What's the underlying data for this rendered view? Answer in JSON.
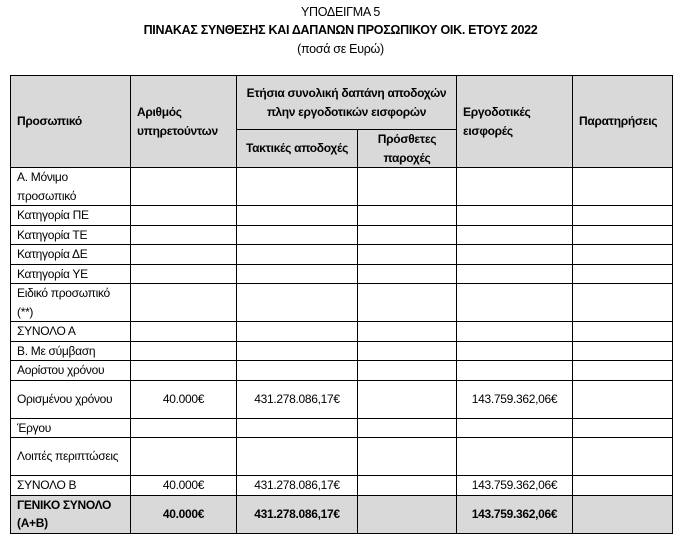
{
  "heading": {
    "subtitle": "ΥΠΟΔΕΙΓΜΑ 5",
    "title": "ΠΙΝΑΚΑΣ ΣΥΝΘΕΣΗΣ ΚΑΙ ΔΑΠΑΝΩΝ ΠΡΟΣΩΠΙΚΟΥ ΟΙΚ. ΕΤΟΥΣ 2022",
    "unit_note": "(ποσά σε Ευρώ)"
  },
  "table": {
    "headers": {
      "personnel": "Προσωπικό",
      "count": "Αριθμός υπηρετούντων",
      "annual_cost": "Ετήσια συνολική δαπάνη αποδοχών πλην εργοδοτικών εισφορών",
      "regular": "Τακτικές αποδοχές",
      "additional": "Πρόσθετες παροχές",
      "employer": "Εργοδοτικές εισφορές",
      "remarks": "Παρατηρήσεις"
    },
    "rows": [
      {
        "label": "Α. Μόνιμο προσωπικό",
        "count": "",
        "regular": "",
        "additional": "",
        "employer": "",
        "remarks": ""
      },
      {
        "label": "Κατηγορία ΠΕ",
        "count": "",
        "regular": "",
        "additional": "",
        "employer": "",
        "remarks": ""
      },
      {
        "label": "Κατηγορία ΤΕ",
        "count": "",
        "regular": "",
        "additional": "",
        "employer": "",
        "remarks": ""
      },
      {
        "label": "Κατηγορία ΔΕ",
        "count": "",
        "regular": "",
        "additional": "",
        "employer": "",
        "remarks": ""
      },
      {
        "label": "Κατηγορία ΥΕ",
        "count": "",
        "regular": "",
        "additional": "",
        "employer": "",
        "remarks": ""
      },
      {
        "label": "Ειδικό προσωπικό (**)",
        "count": "",
        "regular": "",
        "additional": "",
        "employer": "",
        "remarks": ""
      },
      {
        "label": "ΣΥΝΟΛΟ Α",
        "count": "",
        "regular": "",
        "additional": "",
        "employer": "",
        "remarks": ""
      },
      {
        "label": "Β. Με σύμβαση",
        "count": "",
        "regular": "",
        "additional": "",
        "employer": "",
        "remarks": ""
      },
      {
        "label": "Αορίστου χρόνου",
        "count": "",
        "regular": "",
        "additional": "",
        "employer": "",
        "remarks": ""
      },
      {
        "label": "Ορισμένου χρόνου",
        "count": "40.000€",
        "regular": "431.278.086,17€",
        "additional": "",
        "employer": "143.759.362,06€",
        "remarks": ""
      },
      {
        "label": "Έργου",
        "count": "",
        "regular": "",
        "additional": "",
        "employer": "",
        "remarks": ""
      },
      {
        "label": "Λοιπές περιπτώσεις",
        "count": "",
        "regular": "",
        "additional": "",
        "employer": "",
        "remarks": ""
      },
      {
        "label": "ΣΥΝΟΛΟ Β",
        "count": "40.000€",
        "regular": "431.278.086,17€",
        "additional": "",
        "employer": "143.759.362,06€",
        "remarks": ""
      },
      {
        "label": "ΓΕΝΙΚΟ ΣΥΝΟΛΟ (Α+Β)",
        "count": "40.000€",
        "regular": "431.278.086,17€",
        "additional": "",
        "employer": "143.759.362,06€",
        "remarks": ""
      }
    ]
  }
}
